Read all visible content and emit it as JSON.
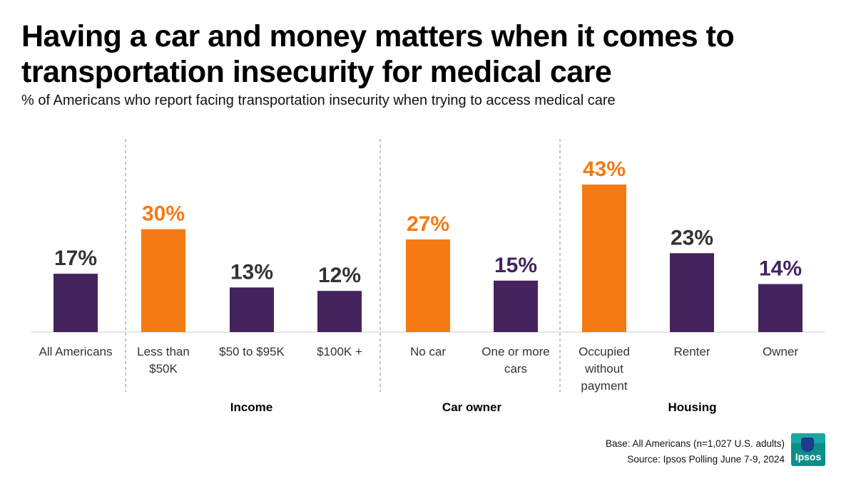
{
  "title": "Having a car and money matters when it comes to transportation insecurity for medical care",
  "subtitle": "% of Americans who report facing transportation insecurity when trying to access medical care",
  "chart_data": {
    "type": "bar",
    "categories": [
      "All Americans",
      "Less than $50K",
      "$50 to $95K",
      "$100K +",
      "No car",
      "One or more cars",
      "Occupied without payment",
      "Renter",
      "Owner"
    ],
    "category_lines": [
      [
        "All Americans"
      ],
      [
        "Less than",
        "$50K"
      ],
      [
        "$50 to $95K"
      ],
      [
        "$100K +"
      ],
      [
        "No car"
      ],
      [
        "One or more",
        "cars"
      ],
      [
        "Occupied",
        "without",
        "payment"
      ],
      [
        "Renter"
      ],
      [
        "Owner"
      ]
    ],
    "values": [
      17,
      30,
      13,
      12,
      27,
      15,
      43,
      23,
      14
    ],
    "value_labels": [
      "17%",
      "30%",
      "13%",
      "12%",
      "27%",
      "15%",
      "43%",
      "23%",
      "14%"
    ],
    "bar_colors": [
      "#44235f",
      "#f57a14",
      "#44235f",
      "#44235f",
      "#f57a14",
      "#44235f",
      "#f57a14",
      "#44235f",
      "#44235f"
    ],
    "label_colors": [
      "#333333",
      "#f57a14",
      "#333333",
      "#333333",
      "#f57a14",
      "#44235f",
      "#f57a14",
      "#333333",
      "#44235f"
    ],
    "groups": [
      {
        "name": "",
        "members": [
          0
        ]
      },
      {
        "name": "Income",
        "members": [
          1,
          2,
          3
        ]
      },
      {
        "name": "Car owner",
        "members": [
          4,
          5
        ]
      },
      {
        "name": "Housing",
        "members": [
          6,
          7,
          8
        ]
      }
    ],
    "ylim": [
      0,
      45
    ],
    "grid": false,
    "xlabel": "",
    "ylabel": ""
  },
  "footer": {
    "base": "Base: All Americans (n=1,027 U.S. adults)",
    "source": "Source: Ipsos Polling  June 7-9, 2024"
  },
  "logo": {
    "text": "Ipsos",
    "color": "#0a8f8a"
  }
}
